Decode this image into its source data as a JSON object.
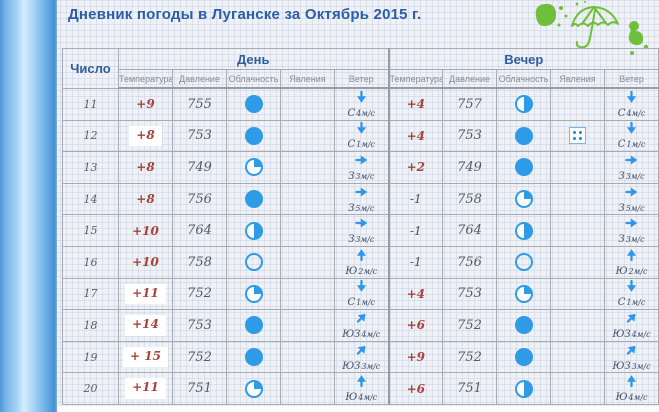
{
  "title": "Дневник погоды в Луганске за Октябрь 2015 г.",
  "colors": {
    "title_blue": "#2b5ea7",
    "temperature_red": "#a8423a",
    "value_gray": "#555b64",
    "icon_blue": "#2e9be6",
    "decoration_green": "#6fbf3a",
    "table_border": "#a7abb2",
    "sidebar_blue": "#74b4e8"
  },
  "table": {
    "date_header": "Число",
    "groups": [
      {
        "label": "День"
      },
      {
        "label": "Вечер"
      }
    ],
    "columns": [
      "Температура",
      "Давление",
      "Облачность",
      "Явления",
      "Ветер"
    ],
    "rows": [
      {
        "date": "11",
        "day": {
          "temp": "+9",
          "pressure": "755",
          "cloud": "full",
          "phenomena": "",
          "wind_dir": "С",
          "wind_speed": "4м/с",
          "arrow": "down",
          "patch": false
        },
        "evening": {
          "temp": "+4",
          "pressure": "757",
          "cloud": "half",
          "phenomena": "",
          "wind_dir": "С",
          "wind_speed": "4м/с",
          "arrow": "down",
          "patch": false
        }
      },
      {
        "date": "12",
        "day": {
          "temp": "+8",
          "pressure": "753",
          "cloud": "full",
          "phenomena": "",
          "wind_dir": "С",
          "wind_speed": "1м/с",
          "arrow": "down",
          "patch": true
        },
        "evening": {
          "temp": "+4",
          "pressure": "753",
          "cloud": "full",
          "phenomena": "dots-square",
          "wind_dir": "С",
          "wind_speed": "1м/с",
          "arrow": "down",
          "patch": false
        }
      },
      {
        "date": "13",
        "day": {
          "temp": "+8",
          "pressure": "749",
          "cloud": "quarter",
          "phenomena": "",
          "wind_dir": "З",
          "wind_speed": "3м/с",
          "arrow": "right",
          "patch": false
        },
        "evening": {
          "temp": "+2",
          "pressure": "749",
          "cloud": "full",
          "phenomena": "",
          "wind_dir": "З",
          "wind_speed": "3м/с",
          "arrow": "right",
          "patch": false
        }
      },
      {
        "date": "14",
        "day": {
          "temp": "+8",
          "pressure": "756",
          "cloud": "full",
          "phenomena": "",
          "wind_dir": "З",
          "wind_speed": "5м/с",
          "arrow": "right",
          "patch": false
        },
        "evening": {
          "temp": "-1",
          "pressure": "758",
          "cloud": "quarter",
          "phenomena": "",
          "wind_dir": "З",
          "wind_speed": "5м/с",
          "arrow": "right",
          "patch": false
        }
      },
      {
        "date": "15",
        "day": {
          "temp": "+10",
          "pressure": "764",
          "cloud": "half",
          "phenomena": "",
          "wind_dir": "З",
          "wind_speed": "3м/с",
          "arrow": "right",
          "patch": false
        },
        "evening": {
          "temp": "-1",
          "pressure": "764",
          "cloud": "half",
          "phenomena": "",
          "wind_dir": "З",
          "wind_speed": "3м/с",
          "arrow": "right",
          "patch": false
        }
      },
      {
        "date": "16",
        "day": {
          "temp": "+10",
          "pressure": "758",
          "cloud": "clear",
          "phenomena": "",
          "wind_dir": "Ю",
          "wind_speed": "2м/с",
          "arrow": "up",
          "patch": false
        },
        "evening": {
          "temp": "-1",
          "pressure": "756",
          "cloud": "clear",
          "phenomena": "",
          "wind_dir": "Ю",
          "wind_speed": "2м/с",
          "arrow": "up",
          "patch": false
        }
      },
      {
        "date": "17",
        "day": {
          "temp": "+11",
          "pressure": "752",
          "cloud": "quarter",
          "phenomena": "",
          "wind_dir": "С",
          "wind_speed": "1м/с",
          "arrow": "down",
          "patch": true
        },
        "evening": {
          "temp": "+4",
          "pressure": "753",
          "cloud": "quarter",
          "phenomena": "",
          "wind_dir": "С",
          "wind_speed": "1м/с",
          "arrow": "down",
          "patch": false
        }
      },
      {
        "date": "18",
        "day": {
          "temp": "+14",
          "pressure": "753",
          "cloud": "full",
          "phenomena": "",
          "wind_dir": "ЮЗ",
          "wind_speed": "4м/с",
          "arrow": "upright",
          "patch": true
        },
        "evening": {
          "temp": "+6",
          "pressure": "752",
          "cloud": "full",
          "phenomena": "",
          "wind_dir": "ЮЗ",
          "wind_speed": "4м/с",
          "arrow": "upright",
          "patch": false
        }
      },
      {
        "date": "19",
        "day": {
          "temp": "+ 15",
          "pressure": "752",
          "cloud": "full",
          "phenomena": "",
          "wind_dir": "ЮЗ",
          "wind_speed": "3м/с",
          "arrow": "upright",
          "patch": true
        },
        "evening": {
          "temp": "+9",
          "pressure": "752",
          "cloud": "full",
          "phenomena": "",
          "wind_dir": "ЮЗ",
          "wind_speed": "3м/с",
          "arrow": "upright",
          "patch": false
        }
      },
      {
        "date": "20",
        "day": {
          "temp": "+11",
          "pressure": "751",
          "cloud": "quarter",
          "phenomena": "",
          "wind_dir": "Ю",
          "wind_speed": "4м/с",
          "arrow": "up",
          "patch": true
        },
        "evening": {
          "temp": "+6",
          "pressure": "751",
          "cloud": "half",
          "phenomena": "",
          "wind_dir": "Ю",
          "wind_speed": "4м/с",
          "arrow": "up",
          "patch": false
        }
      }
    ]
  }
}
